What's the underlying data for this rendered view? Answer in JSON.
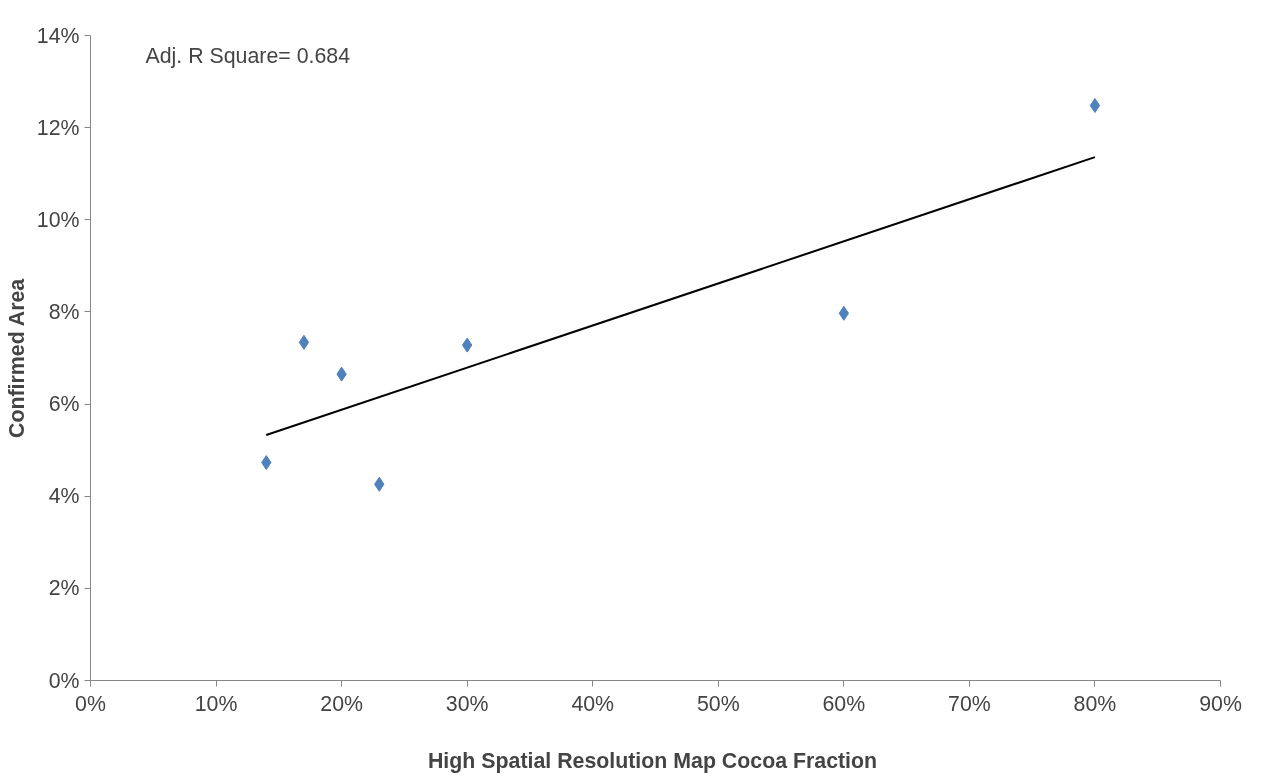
{
  "chart_data": {
    "type": "scatter",
    "xlabel": "High Spatial Resolution  Map Cocoa Fraction",
    "ylabel": "Confirmed Area",
    "annotations": [
      "Adj. R Square= 0.684"
    ],
    "marker": "diamond",
    "grid": false,
    "xlim": [
      0,
      90
    ],
    "ylim": [
      0,
      14
    ],
    "xticks": [
      {
        "value": 0,
        "label": "0%"
      },
      {
        "value": 10,
        "label": "10%"
      },
      {
        "value": 20,
        "label": "20%"
      },
      {
        "value": 30,
        "label": "30%"
      },
      {
        "value": 40,
        "label": "40%"
      },
      {
        "value": 50,
        "label": "50%"
      },
      {
        "value": 60,
        "label": "60%"
      },
      {
        "value": 70,
        "label": "70%"
      },
      {
        "value": 80,
        "label": "80%"
      },
      {
        "value": 90,
        "label": "90%"
      }
    ],
    "yticks": [
      {
        "value": 0,
        "label": "0%"
      },
      {
        "value": 2,
        "label": "2%"
      },
      {
        "value": 4,
        "label": "4%"
      },
      {
        "value": 6,
        "label": "6%"
      },
      {
        "value": 8,
        "label": "8%"
      },
      {
        "value": 10,
        "label": "10%"
      },
      {
        "value": 12,
        "label": "12%"
      },
      {
        "value": 14,
        "label": "14%"
      }
    ],
    "series": [
      {
        "color": "#4f81bd",
        "x": [
          14,
          17,
          20,
          23,
          30,
          60,
          80
        ],
        "values": [
          4.73,
          7.34,
          6.65,
          4.26,
          7.28,
          7.97,
          12.48
        ]
      },
      {
        "type": "line",
        "color": "#000000",
        "marker": "none",
        "x": [
          14,
          80
        ],
        "values": [
          5.33,
          11.36
        ]
      }
    ]
  }
}
